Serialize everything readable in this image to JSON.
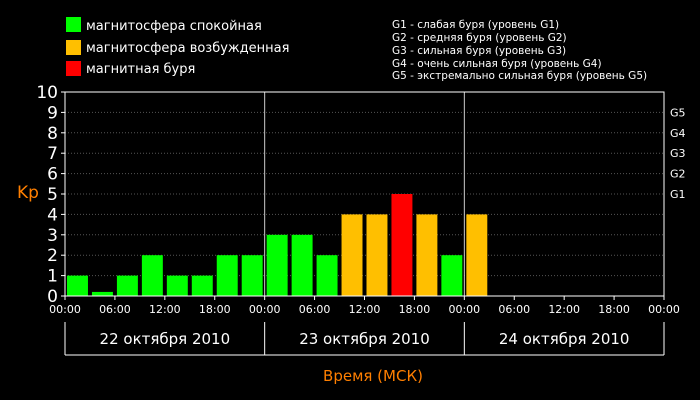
{
  "legend": {
    "quiet": {
      "label": "магнитосфера спокойная",
      "color": "#00ff00"
    },
    "disturbed": {
      "label": "магнитосфера возбужденная",
      "color": "#ffbf00"
    },
    "storm": {
      "label": "магнитная буря",
      "color": "#ff0000"
    }
  },
  "storm_levels": [
    "G1 - слабая буря (уровень G1)",
    "G2 - средняя буря (уровень G2)",
    "G3 - сильная буря (уровень G3)",
    "G4 - очень сильная буря (уровень G4)",
    "G5 - экстремально сильная буря (уровень G5)"
  ],
  "chart_data": {
    "type": "bar",
    "ylabel": "Kp",
    "xlabel": "Время (МСК)",
    "ylim": [
      0,
      10
    ],
    "yticks": [
      "0",
      "1",
      "2",
      "3",
      "4",
      "5",
      "6",
      "7",
      "8",
      "9",
      "10"
    ],
    "g_ticks": [
      {
        "label": "G1",
        "kp": 5
      },
      {
        "label": "G2",
        "kp": 6
      },
      {
        "label": "G3",
        "kp": 7
      },
      {
        "label": "G4",
        "kp": 8
      },
      {
        "label": "G5",
        "kp": 9
      }
    ],
    "x_tick_labels": [
      "00:00",
      "06:00",
      "12:00",
      "18:00",
      "00:00",
      "06:00",
      "12:00",
      "18:00",
      "00:00",
      "06:00",
      "12:00",
      "18:00",
      "00:00"
    ],
    "days": [
      "22 октября 2010",
      "23 октября 2010",
      "24 октября 2010"
    ],
    "intervals_total": 24,
    "values": [
      1,
      0.2,
      1,
      2,
      1,
      1,
      2,
      2,
      3,
      3,
      2,
      4,
      4,
      5,
      4,
      2,
      4
    ],
    "colors": [
      "#00ff00",
      "#00ff00",
      "#00ff00",
      "#00ff00",
      "#00ff00",
      "#00ff00",
      "#00ff00",
      "#00ff00",
      "#00ff00",
      "#00ff00",
      "#00ff00",
      "#ffbf00",
      "#ffbf00",
      "#ff0000",
      "#ffbf00",
      "#00ff00",
      "#ffbf00"
    ],
    "grid": true
  }
}
